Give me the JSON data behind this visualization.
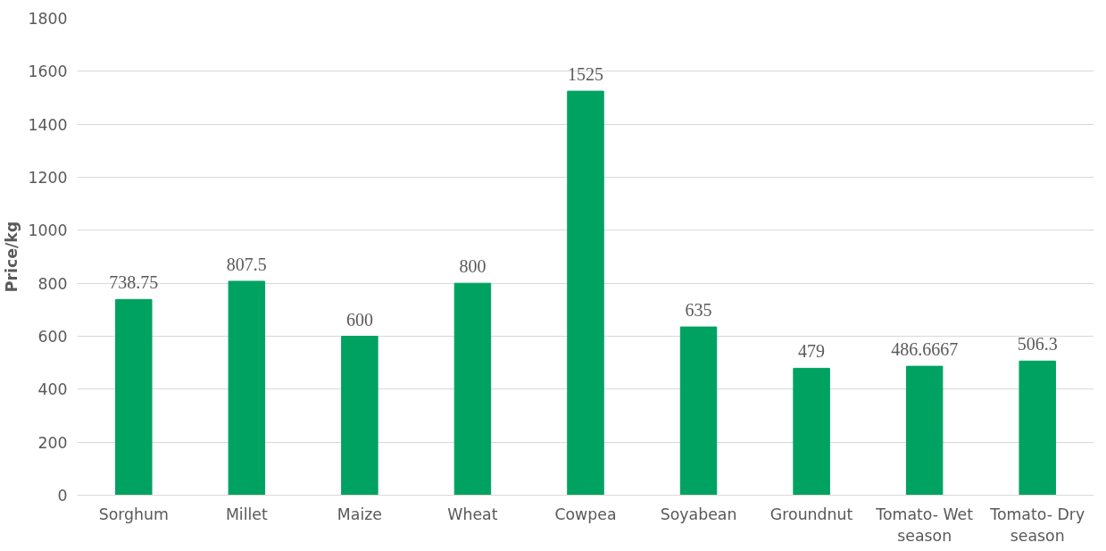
{
  "chart_data": {
    "type": "bar",
    "ylabel": "Price/kg",
    "categories": [
      "Sorghum",
      "Millet",
      "Maize",
      "Wheat",
      "Cowpea",
      "Soyabean",
      "Groundnut",
      "Tomato- Wet season",
      "Tomato- Dry season"
    ],
    "values": [
      738.75,
      807.5,
      600,
      800,
      1525,
      635,
      479,
      486.6667,
      506.3
    ],
    "color": "#00a261",
    "ylim": [
      0,
      1800
    ],
    "yticks": [
      0,
      200,
      400,
      600,
      800,
      1000,
      1200,
      1400,
      1600,
      1800
    ],
    "grid": "y",
    "data_labels": true
  }
}
